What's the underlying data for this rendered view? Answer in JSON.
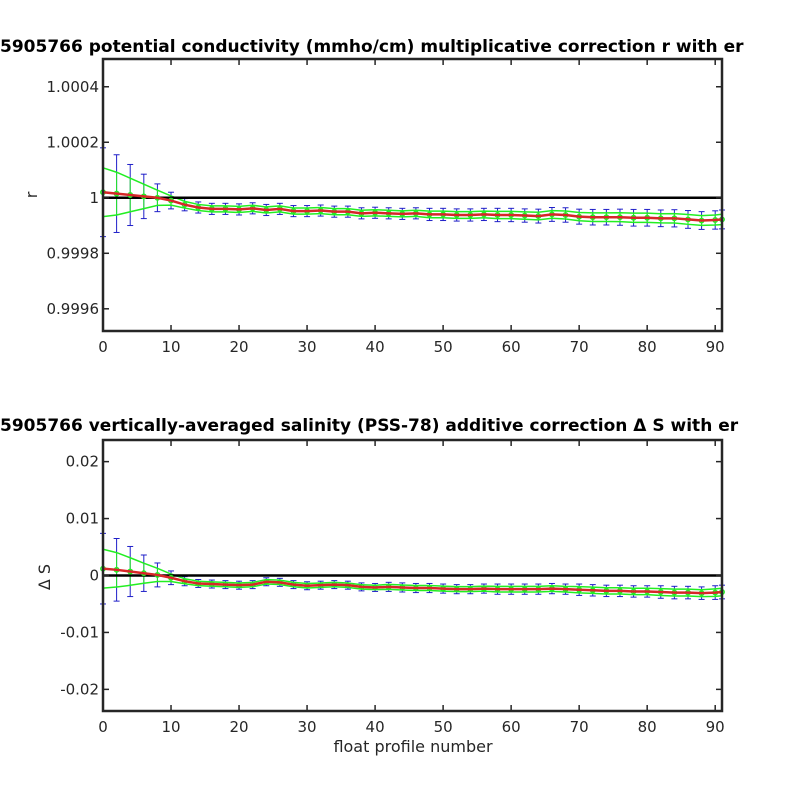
{
  "chart_data": [
    {
      "type": "line",
      "title": "5905766 potential conductivity (mmho/cm) multiplicative correction r with er",
      "xlabel": "",
      "ylabel": "r",
      "xlim": [
        0,
        91
      ],
      "ylim": [
        0.99952,
        1.0005
      ],
      "x_ticks": [
        "0",
        "10",
        "20",
        "30",
        "40",
        "50",
        "60",
        "70",
        "80",
        "90"
      ],
      "y_ticks": [
        "0.9996",
        "0.9998",
        "1",
        "1.0002",
        "1.0004"
      ],
      "reference_line": 1.0,
      "colors": {
        "series_red": "#d62728",
        "series_green": "#22ee22",
        "errorbar_blue": "#1f1fc8",
        "reference": "#000000"
      },
      "grid": false,
      "series": [
        {
          "x": [
            0,
            2,
            4,
            6,
            8,
            10,
            12,
            14,
            16,
            18,
            20,
            22,
            24,
            26,
            28,
            30,
            32,
            34,
            36,
            38,
            40,
            42,
            44,
            46,
            48,
            50,
            52,
            54,
            56,
            58,
            60,
            62,
            64,
            66,
            68,
            70,
            72,
            74,
            76,
            78,
            80,
            82,
            84,
            86,
            88,
            90,
            91
          ],
          "values": [
            1.00002,
            1.000015,
            1.00001,
            1.000005,
            1.0,
            0.99999,
            0.999975,
            0.999965,
            0.99996,
            0.99996,
            0.999958,
            0.999962,
            0.999956,
            0.99996,
            0.999952,
            0.999952,
            0.999954,
            0.99995,
            0.99995,
            0.999944,
            0.999946,
            0.999944,
            0.999942,
            0.999944,
            0.99994,
            0.99994,
            0.999938,
            0.999938,
            0.99994,
            0.999938,
            0.999938,
            0.999936,
            0.999934,
            0.99994,
            0.999938,
            0.999932,
            0.99993,
            0.99993,
            0.99993,
            0.999928,
            0.999928,
            0.999926,
            0.999926,
            0.999922,
            0.999918,
            0.99992,
            0.999922
          ],
          "errors": [
            0.00016,
            0.00014,
            0.00011,
            8e-05,
            5e-05,
            3e-05,
            2.2e-05,
            2e-05,
            2e-05,
            2e-05,
            2e-05,
            2e-05,
            2e-05,
            2e-05,
            2e-05,
            2e-05,
            2e-05,
            2e-05,
            2e-05,
            2e-05,
            2e-05,
            2e-05,
            2e-05,
            2e-05,
            2.2e-05,
            2.2e-05,
            2.2e-05,
            2.2e-05,
            2.2e-05,
            2.4e-05,
            2.4e-05,
            2.4e-05,
            2.5e-05,
            2.5e-05,
            2.6e-05,
            2.7e-05,
            2.8e-05,
            2.8e-05,
            2.9e-05,
            3e-05,
            3e-05,
            3e-05,
            3.1e-05,
            3.2e-05,
            3.2e-05,
            3.3e-05,
            3.4e-05
          ]
        }
      ]
    },
    {
      "type": "line",
      "title": "5905766 vertically-averaged salinity (PSS-78) additive correction Δ S with er",
      "xlabel": "float profile number",
      "ylabel": "Δ S",
      "xlim": [
        0,
        91
      ],
      "ylim": [
        -0.0238,
        0.0238
      ],
      "x_ticks": [
        "0",
        "10",
        "20",
        "30",
        "40",
        "50",
        "60",
        "70",
        "80",
        "90"
      ],
      "y_ticks": [
        "-0.02",
        "-0.01",
        "0",
        "0.01",
        "0.02"
      ],
      "reference_line": 0,
      "colors": {
        "series_red": "#d62728",
        "series_green": "#22ee22",
        "errorbar_blue": "#1f1fc8",
        "reference": "#000000"
      },
      "grid": false,
      "series": [
        {
          "x": [
            0,
            2,
            4,
            6,
            8,
            10,
            12,
            14,
            16,
            18,
            20,
            22,
            24,
            26,
            28,
            30,
            32,
            34,
            36,
            38,
            40,
            42,
            44,
            46,
            48,
            50,
            52,
            54,
            56,
            58,
            60,
            62,
            64,
            66,
            68,
            70,
            72,
            74,
            76,
            78,
            80,
            82,
            84,
            86,
            88,
            90,
            91
          ],
          "values": [
            0.0012,
            0.001,
            0.0007,
            0.0004,
            0.0001,
            -0.0004,
            -0.001,
            -0.0014,
            -0.0015,
            -0.0016,
            -0.0017,
            -0.0016,
            -0.0011,
            -0.0012,
            -0.0016,
            -0.0018,
            -0.0017,
            -0.0016,
            -0.0017,
            -0.002,
            -0.0021,
            -0.002,
            -0.0021,
            -0.0022,
            -0.0022,
            -0.0023,
            -0.0024,
            -0.0024,
            -0.0023,
            -0.0024,
            -0.0024,
            -0.0024,
            -0.0024,
            -0.0023,
            -0.0024,
            -0.0025,
            -0.0026,
            -0.0027,
            -0.0027,
            -0.0028,
            -0.0028,
            -0.0029,
            -0.003,
            -0.003,
            -0.0031,
            -0.003,
            -0.0029
          ],
          "errors": [
            0.0062,
            0.0055,
            0.0044,
            0.0032,
            0.0021,
            0.0012,
            0.0008,
            0.0007,
            0.0007,
            0.0007,
            0.0007,
            0.0007,
            0.0007,
            0.0007,
            0.0007,
            0.0007,
            0.0007,
            0.0007,
            0.0007,
            0.0007,
            0.0007,
            0.0008,
            0.0008,
            0.0008,
            0.0008,
            0.0008,
            0.0008,
            0.0008,
            0.0008,
            0.0009,
            0.0009,
            0.0009,
            0.0009,
            0.0009,
            0.0009,
            0.001,
            0.001,
            0.001,
            0.001,
            0.001,
            0.001,
            0.0011,
            0.0011,
            0.0011,
            0.0011,
            0.0012,
            0.0012
          ]
        }
      ]
    }
  ]
}
